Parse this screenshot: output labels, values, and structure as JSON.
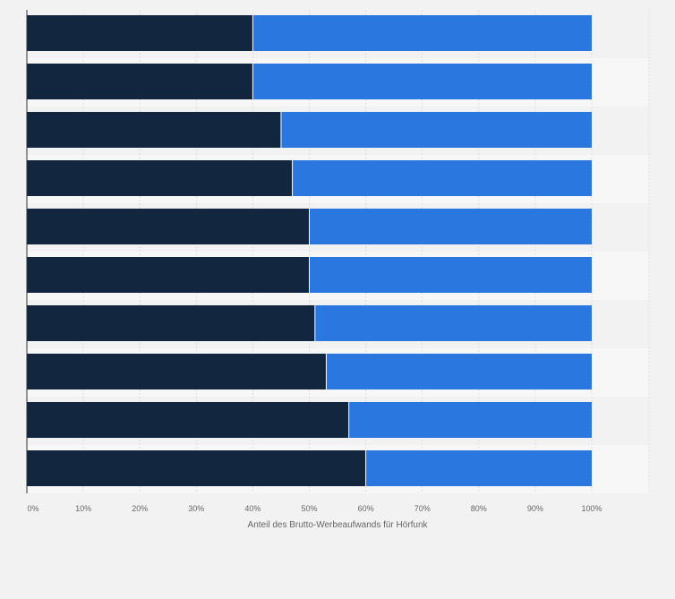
{
  "chart_data": {
    "type": "bar",
    "orientation": "horizontal",
    "stacked": true,
    "percent_stacked": true,
    "categories": [
      "",
      "",
      "",
      "",
      "",
      "",
      "",
      "",
      "",
      ""
    ],
    "series": [
      {
        "color": "#12263f",
        "values": [
          40,
          40,
          45,
          47,
          50,
          50,
          51,
          53,
          57,
          60
        ]
      },
      {
        "color": "#2a77df",
        "values": [
          60,
          60,
          55,
          53,
          50,
          50,
          49,
          47,
          43,
          40
        ]
      }
    ],
    "xlabel": "Anteil des Brutto-Werbeaufwands für Hörfunk",
    "ylabel": "",
    "xlim": [
      0,
      100
    ],
    "xticks": [
      0,
      10,
      20,
      30,
      40,
      50,
      60,
      70,
      80,
      90,
      100
    ],
    "xtick_labels": [
      "0%",
      "10%",
      "20%",
      "30%",
      "40%",
      "50%",
      "60%",
      "70%",
      "80%",
      "90%",
      "100%"
    ],
    "grid": true,
    "legend": "none"
  },
  "colors": {
    "background": "#f2f2f2",
    "band_light": "#f7f7f7",
    "gridline": "#dddddd",
    "axis": "#333333"
  }
}
